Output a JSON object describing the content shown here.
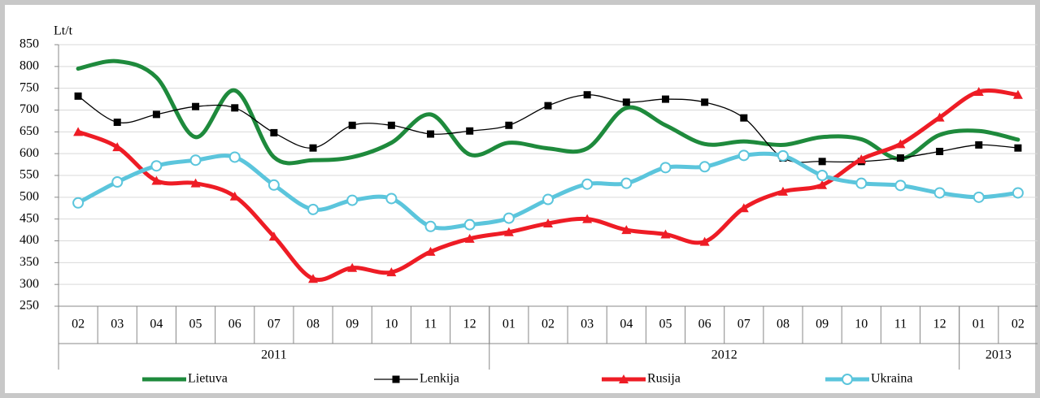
{
  "chart_data": {
    "type": "line",
    "y_label": "Lt/t",
    "category_groups": [
      {
        "label": "2011",
        "categories": [
          "02",
          "03",
          "04",
          "05",
          "06",
          "07",
          "08",
          "09",
          "10",
          "11",
          "12"
        ]
      },
      {
        "label": "2012",
        "categories": [
          "01",
          "02",
          "03",
          "04",
          "05",
          "06",
          "07",
          "08",
          "09",
          "10",
          "11",
          "12"
        ]
      },
      {
        "label": "2013",
        "categories": [
          "01",
          "02"
        ]
      }
    ],
    "ylim": [
      250,
      850
    ],
    "yticks": [
      250,
      300,
      350,
      400,
      450,
      500,
      550,
      600,
      650,
      700,
      750,
      800,
      850
    ],
    "grid": true,
    "legend": "bottom",
    "series": [
      {
        "name": "Lietuva",
        "color": "#1e8a3c",
        "marker": "none",
        "values": [
          795,
          812,
          775,
          638,
          745,
          592,
          585,
          592,
          625,
          690,
          598,
          625,
          612,
          612,
          705,
          665,
          622,
          628,
          620,
          638,
          633,
          588,
          643,
          652,
          632
        ]
      },
      {
        "name": "Lenkija",
        "color": "#000000",
        "marker": "square",
        "values": [
          732,
          672,
          690,
          708,
          705,
          648,
          613,
          665,
          665,
          645,
          652,
          665,
          710,
          735,
          718,
          725,
          718,
          682,
          590,
          582,
          582,
          590,
          605,
          620,
          613
        ]
      },
      {
        "name": "Rusija",
        "color": "#ee1c25",
        "marker": "triangle",
        "values": [
          650,
          615,
          538,
          532,
          502,
          410,
          313,
          338,
          328,
          375,
          405,
          420,
          440,
          450,
          425,
          415,
          398,
          475,
          513,
          528,
          587,
          622,
          683,
          742,
          735
        ]
      },
      {
        "name": "Ukraina",
        "color": "#5bc5dc",
        "marker": "circle",
        "values": [
          487,
          535,
          572,
          585,
          592,
          528,
          472,
          493,
          497,
          433,
          437,
          452,
          495,
          530,
          532,
          568,
          570,
          596,
          595,
          550,
          532,
          527,
          510,
          500,
          510
        ]
      }
    ]
  }
}
